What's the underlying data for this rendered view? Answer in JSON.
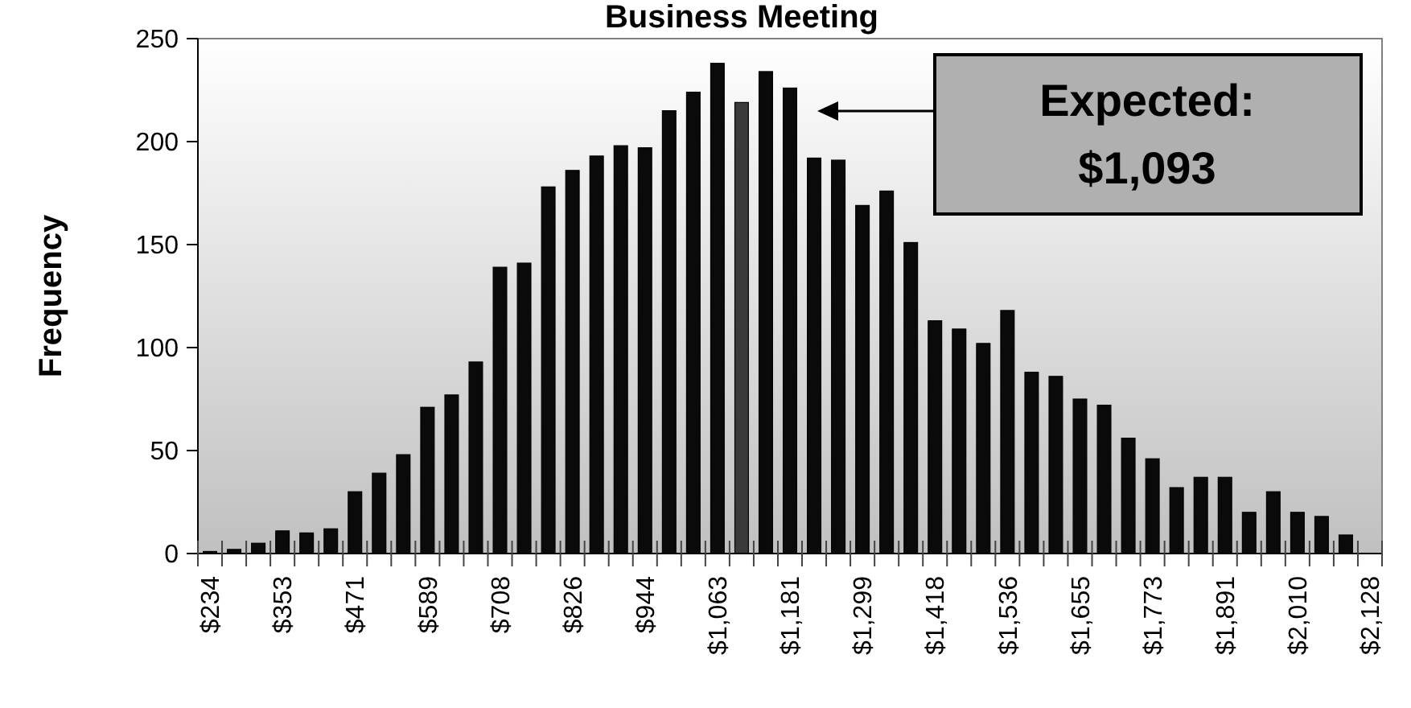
{
  "chart_data": {
    "type": "bar",
    "title": "Business Meeting",
    "ylabel": "Frequency",
    "categories": [
      "$234",
      null,
      null,
      "$353",
      null,
      null,
      "$471",
      null,
      null,
      "$589",
      null,
      null,
      "$708",
      null,
      null,
      "$826",
      null,
      null,
      "$944",
      null,
      null,
      "$1,063",
      null,
      null,
      "$1,181",
      null,
      null,
      "$1,299",
      null,
      null,
      "$1,418",
      null,
      null,
      "$1,536",
      null,
      null,
      "$1,655",
      null,
      null,
      "$1,773",
      null,
      null,
      "$1,891",
      null,
      null,
      "$2,010",
      null,
      null,
      "$2,128"
    ],
    "values": [
      1,
      2,
      5,
      11,
      10,
      12,
      30,
      39,
      48,
      71,
      77,
      93,
      139,
      141,
      178,
      186,
      193,
      198,
      197,
      215,
      224,
      238,
      219,
      234,
      226,
      192,
      191,
      169,
      176,
      151,
      113,
      109,
      102,
      118,
      88,
      86,
      75,
      72,
      56,
      46,
      32,
      37,
      37,
      20,
      30,
      20,
      18,
      9,
      0
    ],
    "colors": [
      "#0a0a0a",
      "#0a0a0a",
      "#0a0a0a",
      "#0a0a0a",
      "#0a0a0a",
      "#0a0a0a",
      "#0a0a0a",
      "#0a0a0a",
      "#0a0a0a",
      "#0a0a0a",
      "#0a0a0a",
      "#0a0a0a",
      "#0a0a0a",
      "#0a0a0a",
      "#0a0a0a",
      "#0a0a0a",
      "#0a0a0a",
      "#0a0a0a",
      "#0a0a0a",
      "#0a0a0a",
      "#0a0a0a",
      "#0a0a0a",
      "#3a3a3a",
      "#0a0a0a",
      "#0a0a0a",
      "#0a0a0a",
      "#0a0a0a",
      "#0a0a0a",
      "#0a0a0a",
      "#0a0a0a",
      "#0a0a0a",
      "#0a0a0a",
      "#0a0a0a",
      "#0a0a0a",
      "#0a0a0a",
      "#0a0a0a",
      "#0a0a0a",
      "#0a0a0a",
      "#0a0a0a",
      "#0a0a0a",
      "#0a0a0a",
      "#0a0a0a",
      "#0a0a0a",
      "#0a0a0a",
      "#0a0a0a",
      "#0a0a0a",
      "#0a0a0a",
      "#0a0a0a",
      "#0a0a0a"
    ],
    "ylim": [
      0,
      250
    ],
    "yticks": [
      0,
      50,
      100,
      150,
      200,
      250
    ],
    "grid": false,
    "annotations": [
      "Expected:\n$1,093"
    ]
  }
}
